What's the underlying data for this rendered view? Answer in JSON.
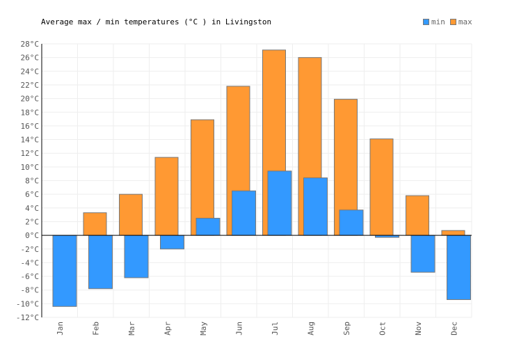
{
  "chart_data": {
    "type": "bar",
    "title": "Average max / min temperatures (°C ) in Livingston",
    "categories": [
      "Jan",
      "Feb",
      "Mar",
      "Apr",
      "May",
      "Jun",
      "Jul",
      "Aug",
      "Sep",
      "Oct",
      "Nov",
      "Dec"
    ],
    "series": [
      {
        "name": "min",
        "color": "#3399ff",
        "values": [
          -10.4,
          -7.8,
          -6.2,
          -2.0,
          2.5,
          6.5,
          9.4,
          8.4,
          3.7,
          -0.3,
          -5.4,
          -9.4
        ]
      },
      {
        "name": "max",
        "color": "#ff9933",
        "values": [
          0,
          3.3,
          6.0,
          11.4,
          16.9,
          21.8,
          27.1,
          26.0,
          19.9,
          14.1,
          5.8,
          0.7
        ]
      }
    ],
    "ylim": [
      -12,
      28
    ],
    "ytick_step": 2,
    "ytick_suffix": "°C",
    "grid": true,
    "legend": "top-right"
  }
}
